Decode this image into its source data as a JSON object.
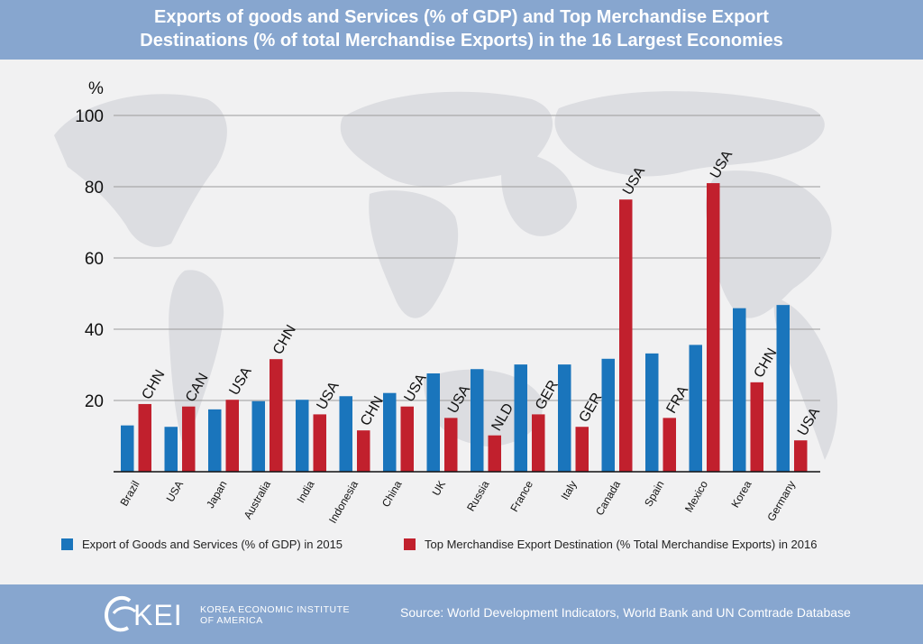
{
  "header": {
    "title_line1": "Exports of goods and Services (% of GDP) and Top Merchandise Export",
    "title_line2": "Destinations (% of total Merchandise Exports) in the 16 Largest Economies"
  },
  "chart_data": {
    "type": "bar",
    "title": "Exports of goods and Services (% of GDP) and Top Merchandise Export Destinations (% of total Merchandise Exports) in the 16 Largest Economies",
    "ylabel": "%",
    "ylim": [
      0,
      100
    ],
    "yticks": [
      20,
      40,
      60,
      80,
      100
    ],
    "categories": [
      "Brazil",
      "USA",
      "Japan",
      "Australia",
      "India",
      "Indonesia",
      "China",
      "UK",
      "Russia",
      "France",
      "Italy",
      "Canada",
      "Spain",
      "Mexico",
      "Korea",
      "Germany"
    ],
    "series": [
      {
        "name": "Export of Goods and Services (% of GDP) in 2015",
        "color": "#1a75bc",
        "values": [
          13,
          12.6,
          17.5,
          19.8,
          20.2,
          21.2,
          22.1,
          27.6,
          28.8,
          30.1,
          30.1,
          31.7,
          33.2,
          35.6,
          45.9,
          46.8
        ]
      },
      {
        "name": "Top Merchandise Export Destination (% Total Merchandise Exports) in 2016",
        "color": "#c1202d",
        "values": [
          19,
          18.3,
          20.2,
          31.6,
          16.1,
          11.6,
          18.3,
          15.1,
          10.2,
          16.1,
          12.6,
          76.4,
          15.1,
          81,
          25.1,
          8.8
        ],
        "labels": [
          "CHN",
          "CAN",
          "USA",
          "CHN",
          "USA",
          "CHN",
          "USA",
          "USA",
          "NLD",
          "GER",
          "GER",
          "USA",
          "FRA",
          "USA",
          "CHN",
          "USA"
        ]
      }
    ],
    "legend": [
      "Export of Goods and Services (% of GDP) in 2015",
      "Top Merchandise Export Destination (% Total Merchandise Exports) in 2016"
    ],
    "grid": true,
    "legend_position": "bottom"
  },
  "footer": {
    "logo_text": "KEI",
    "logo_line1": "KOREA ECONOMIC INSTITUTE",
    "logo_line2": "OF AMERICA",
    "source": "Source: World Development Indicators, World Bank and UN Comtrade Database"
  }
}
